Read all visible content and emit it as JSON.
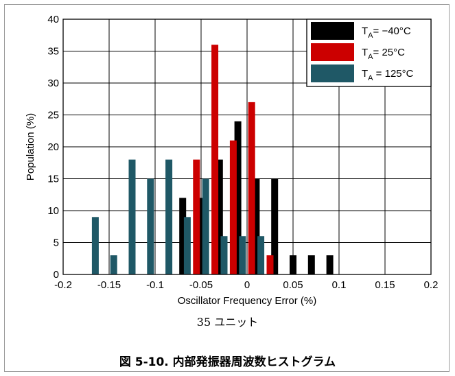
{
  "chart_data": {
    "type": "bar",
    "xlabel": "Oscillator Frequency Error (%)",
    "ylabel": "Population (%)",
    "xlim": [
      -0.2,
      0.2
    ],
    "ylim": [
      0,
      40
    ],
    "xticks": [
      "-0.2",
      "-0.15",
      "-0.1",
      "-0.05",
      "0",
      "0.05",
      "0.1",
      "0.15",
      "0.2"
    ],
    "yticks": [
      "0",
      "5",
      "10",
      "15",
      "20",
      "25",
      "30",
      "35",
      "40"
    ],
    "grid": true,
    "legend_position": "top-right",
    "series": [
      {
        "name": "-40°C",
        "color": "#000000",
        "points": [
          {
            "x": -0.07,
            "y": 12
          },
          {
            "x": -0.05,
            "y": 12
          },
          {
            "x": -0.03,
            "y": 18
          },
          {
            "x": -0.01,
            "y": 24
          },
          {
            "x": 0.01,
            "y": 15
          },
          {
            "x": 0.03,
            "y": 15
          },
          {
            "x": 0.05,
            "y": 3
          },
          {
            "x": 0.07,
            "y": 3
          },
          {
            "x": 0.09,
            "y": 3
          }
        ]
      },
      {
        "name": "25°C",
        "color": "#cc0000",
        "points": [
          {
            "x": -0.055,
            "y": 18
          },
          {
            "x": -0.035,
            "y": 36
          },
          {
            "x": -0.015,
            "y": 21
          },
          {
            "x": 0.005,
            "y": 27
          },
          {
            "x": 0.025,
            "y": 3
          }
        ]
      },
      {
        "name": "125°C",
        "color": "#1f5866",
        "points": [
          {
            "x": -0.165,
            "y": 9
          },
          {
            "x": -0.145,
            "y": 3
          },
          {
            "x": -0.125,
            "y": 18
          },
          {
            "x": -0.105,
            "y": 15
          },
          {
            "x": -0.085,
            "y": 18
          },
          {
            "x": -0.065,
            "y": 9
          },
          {
            "x": -0.045,
            "y": 15
          },
          {
            "x": -0.025,
            "y": 6
          },
          {
            "x": -0.005,
            "y": 6
          },
          {
            "x": 0.015,
            "y": 6
          }
        ]
      }
    ],
    "legend": [
      {
        "prefix": "T",
        "sub": "A",
        "text": "= −40°C",
        "color": "#000000"
      },
      {
        "prefix": "T",
        "sub": "A",
        "text": "= 25°C",
        "color": "#cc0000"
      },
      {
        "prefix": "T",
        "sub": "A",
        "text": " = 125°C",
        "color": "#1f5866"
      }
    ]
  },
  "note": "35 ユニット",
  "caption": "図 5-10. 内部発振器周波数ヒストグラム"
}
